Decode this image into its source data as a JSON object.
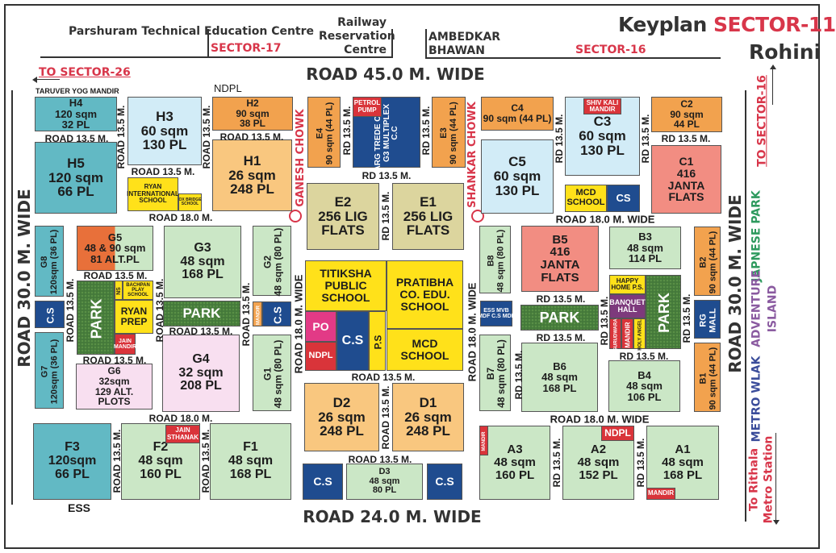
{
  "header": {
    "parshuram": "Parshuram Technical Education Centre",
    "sector17": "SECTOR-17",
    "railway": "Railway Reservation Centre",
    "ambedkar": "AMBEDKAR BHAWAN",
    "sector16": "SECTOR-16",
    "keyplan": "Keyplan",
    "sector11": "SECTOR-11",
    "rohini": "Rohini"
  },
  "directions": {
    "to_sector_26": "TO SECTOR-26",
    "to_sector_16": "TO SECTOR-16",
    "to_rithala_1": "To Rithala",
    "to_rithala_2": "Metro Station"
  },
  "major_roads": {
    "top": "ROAD 45.0 M. WIDE",
    "bottom": "ROAD 24.0 M. WIDE",
    "left": "ROAD 30.0 M. WIDE",
    "right": "ROAD 30.0 M. WIDE"
  },
  "chowks": {
    "ganesh": "GANESH CHOWK",
    "shankar": "SHANKAR CHOWK"
  },
  "landmarks": {
    "taruver": "TARUVER YOG MANDIR",
    "ndpl_top": "NDPL",
    "ess": "ESS",
    "japnese_park": "JAPNESE PARK",
    "adventure_1": "ADVENTURE",
    "adventure_2": "ISLAND",
    "metro_walk": "METRO WLAK"
  },
  "colors": {
    "teal": "#62b9c4",
    "light_blue": "#d2ecf7",
    "orange": "#f2a24e",
    "light_orange": "#f9c77f",
    "khaki": "#dcd59e",
    "dark_blue": "#1f4c8f",
    "light_green": "#cbe7c6",
    "salmon": "#f28d82",
    "yellow": "#ffe11a",
    "pink": "#f8dff0",
    "park_green": "#44793a",
    "red": "#d9343a",
    "magenta": "#e23a86",
    "purple": "#7d3a7c",
    "accent_red": "#d8364a"
  },
  "plots": {
    "H4": {
      "lines": [
        "H4",
        "120 sqm",
        "32 PL"
      ],
      "color": "#62b9c4"
    },
    "H5": {
      "lines": [
        "H5",
        "120 sqm",
        "66 PL"
      ],
      "color": "#62b9c4"
    },
    "H3": {
      "lines": [
        "H3",
        "60 sqm",
        "130 PL"
      ],
      "color": "#d2ecf7"
    },
    "H2": {
      "lines": [
        "H2",
        "90 sqm",
        "38 PL"
      ],
      "color": "#f2a24e"
    },
    "H1": {
      "lines": [
        "H1",
        "26 sqm",
        "248 PL"
      ],
      "color": "#f9c77f"
    },
    "ryan_intl": {
      "lines": [
        "RYAN",
        "INTERNATIONAL",
        "SCHOOL"
      ],
      "color": "#ffe11a"
    },
    "oxbridge": {
      "lines": [
        "OX BRIDGE",
        "SCHOOL"
      ],
      "color": "#ffe11a"
    },
    "E4": {
      "lines": [
        "E4",
        "90 sqm (44 PL)"
      ],
      "color": "#f2a24e"
    },
    "G3_multiplex": {
      "lines": [
        "GARG TREDE CENTRE",
        "G3 MULTIPLEX",
        "C.C"
      ],
      "color": "#1f4c8f"
    },
    "petrol_pump": {
      "lines": [
        "PETROL",
        "PUMP"
      ],
      "color": "#d9343a"
    },
    "E3": {
      "lines": [
        "E3",
        "90 sqm (44 PL)"
      ],
      "color": "#f2a24e"
    },
    "E2": {
      "lines": [
        "E2",
        "256 LIG",
        "FLATS"
      ],
      "color": "#dcd59e"
    },
    "E1": {
      "lines": [
        "E1",
        "256 LIG",
        "FLATS"
      ],
      "color": "#dcd59e"
    },
    "C4": {
      "lines": [
        "C4",
        "90 sqm (44 PL)"
      ],
      "color": "#f2a24e"
    },
    "C3": {
      "lines": [
        "C3",
        "60 sqm",
        "130 PL"
      ],
      "color": "#d2ecf7"
    },
    "shiv_kali": {
      "lines": [
        "SHIV KALI",
        "MANDIR"
      ],
      "color": "#d9343a"
    },
    "C2": {
      "lines": [
        "C2",
        "90 sqm",
        "44 PL"
      ],
      "color": "#f2a24e"
    },
    "C1": {
      "lines": [
        "C1",
        "416",
        "JANTA",
        "FLATS"
      ],
      "color": "#f28d82"
    },
    "C5": {
      "lines": [
        "C5",
        "60 sqm",
        "130 PL"
      ],
      "color": "#d2ecf7"
    },
    "mcd_school_c": {
      "lines": [
        "MCD",
        "SCHOOL"
      ],
      "color": "#ffe11a"
    },
    "cs_c": {
      "lines": [
        "CS"
      ],
      "color": "#1f4c8f"
    },
    "B8": {
      "lines": [
        "B8",
        "48 sqm (80 PL)"
      ],
      "color": "#cbe7c6"
    },
    "B5": {
      "lines": [
        "B5",
        "416",
        "JANTA",
        "FLATS"
      ],
      "color": "#f28d82"
    },
    "B3": {
      "lines": [
        "B3",
        "48 sqm",
        "114 PL"
      ],
      "color": "#cbe7c6"
    },
    "B2": {
      "lines": [
        "B2",
        "90 sqm (44 PL)"
      ],
      "color": "#f2a24e"
    },
    "mvb": {
      "lines": [
        "ESS MVB",
        "MDF C.S MDF"
      ],
      "color": "#1f4c8f"
    },
    "park_b": {
      "lines": [
        "PARK"
      ],
      "color": "#44793a"
    },
    "happy_home": {
      "lines": [
        "HAPPY",
        "HOME P.S."
      ],
      "color": "#ffe11a"
    },
    "banquet": {
      "lines": [
        "BANQUET",
        "HALL"
      ],
      "color": "#7d3a7c"
    },
    "gurudwara": {
      "lines": [
        "GURUDWARA"
      ],
      "color": "#d9343a"
    },
    "mandir_b": {
      "lines": [
        "MANDIR"
      ],
      "color": "#d9343a"
    },
    "holy_angel": {
      "lines": [
        "HOLY ANGEL"
      ],
      "color": "#ffe11a"
    },
    "park_b2": {
      "lines": [
        "PARK"
      ],
      "color": "#44793a"
    },
    "rg_mall": {
      "lines": [
        "RG",
        "MALL"
      ],
      "color": "#1f4c8f"
    },
    "B1": {
      "lines": [
        "B1",
        "90 sqm (44 PL)"
      ],
      "color": "#f2a24e"
    },
    "B7": {
      "lines": [
        "B7",
        "48 sqm (80 PL)"
      ],
      "color": "#cbe7c6"
    },
    "B6": {
      "lines": [
        "B6",
        "48 sqm",
        "168 PL"
      ],
      "color": "#cbe7c6"
    },
    "B4": {
      "lines": [
        "B4",
        "48 sqm",
        "106 PL"
      ],
      "color": "#cbe7c6"
    },
    "A3": {
      "lines": [
        "A3",
        "48 sqm",
        "160 PL"
      ],
      "color": "#cbe7c6"
    },
    "mandir_a3": {
      "lines": [
        "MANDIR"
      ],
      "color": "#d9343a"
    },
    "A2": {
      "lines": [
        "A2",
        "48 sqm",
        "152 PL"
      ],
      "color": "#cbe7c6"
    },
    "ndpl_a2": {
      "lines": [
        "NDPL"
      ],
      "color": "#d9343a"
    },
    "A1": {
      "lines": [
        "A1",
        "48 sqm",
        "168 PL"
      ],
      "color": "#cbe7c6"
    },
    "mandir_a1": {
      "lines": [
        "MANDIR"
      ],
      "color": "#d9343a"
    },
    "cs_d": {
      "lines": [
        "C.S"
      ],
      "color": "#1f4c8f"
    },
    "D3": {
      "lines": [
        "D3",
        "48 sqm",
        "80 PL"
      ],
      "color": "#cbe7c6"
    },
    "cs_d3": {
      "lines": [
        "C.S"
      ],
      "color": "#1f4c8f"
    },
    "D2": {
      "lines": [
        "D2",
        "26 sqm",
        "248 PL"
      ],
      "color": "#f9c77f"
    },
    "D1": {
      "lines": [
        "D1",
        "26 sqm",
        "248 PL"
      ],
      "color": "#f9c77f"
    },
    "titiksha": {
      "lines": [
        "TITIKSHA",
        "PUBLIC",
        "SCHOOL"
      ],
      "color": "#ffe11a"
    },
    "po": {
      "lines": [
        "PO"
      ],
      "color": "#e23a86"
    },
    "ndpl_center": {
      "lines": [
        "NDPL"
      ],
      "color": "#d9343a"
    },
    "cs_center": {
      "lines": [
        "C.S"
      ],
      "color": "#1f4c8f"
    },
    "ps_center": {
      "lines": [
        "P.S"
      ],
      "color": "#ffe11a"
    },
    "pratibha": {
      "lines": [
        "PRATIBHA",
        "CO. EDU.",
        "SCHOOL"
      ],
      "color": "#ffe11a"
    },
    "mcd_school_center": {
      "lines": [
        "MCD",
        "SCHOOL"
      ],
      "color": "#ffe11a"
    },
    "G2": {
      "lines": [
        "G2",
        "48 sqm (80 PL)"
      ],
      "color": "#cbe7c6"
    },
    "mandir_g": {
      "lines": [
        "MANDIR"
      ],
      "color": "#f2a24e"
    },
    "cs_g": {
      "lines": [
        "C.S"
      ],
      "color": "#1f4c8f"
    },
    "G1": {
      "lines": [
        "G1",
        "48 sqm (80 PL)"
      ],
      "color": "#cbe7c6"
    },
    "G3": {
      "lines": [
        "G3",
        "48 sqm",
        "168 PL"
      ],
      "color": "#cbe7c6"
    },
    "park_g": {
      "lines": [
        "PARK"
      ],
      "color": "#44793a"
    },
    "G4": {
      "lines": [
        "G4",
        "32 sqm",
        "208 PL"
      ],
      "color": "#f8dff0"
    },
    "G5": {
      "lines": [
        "G5",
        "48 & 90 sqm",
        "81 ALT.PL"
      ],
      "color": "#cbe7c6"
    },
    "park_g5": {
      "lines": [
        "PARK"
      ],
      "color": "#44793a"
    },
    "ns": {
      "lines": [
        "NS"
      ],
      "color": "#ffe11a"
    },
    "bachpan": {
      "lines": [
        "BACHPAN",
        "PLAY",
        "SCHOOL"
      ],
      "color": "#ffe11a"
    },
    "ryan_prep": {
      "lines": [
        "RYAN",
        "PREP"
      ],
      "color": "#ffe11a"
    },
    "jain_mandir": {
      "lines": [
        "JAIN",
        "MANDIR"
      ],
      "color": "#d9343a"
    },
    "G6": {
      "lines": [
        "G6",
        "32sqm",
        "129 ALT.",
        "PLOTS"
      ],
      "color": "#f8dff0"
    },
    "G8": {
      "lines": [
        "G8",
        "120sqm (36 PL)"
      ],
      "color": "#62b9c4"
    },
    "cs_left": {
      "lines": [
        "C.S"
      ],
      "color": "#1f4c8f"
    },
    "G7": {
      "lines": [
        "G7",
        "120sqm (36 PL)"
      ],
      "color": "#62b9c4"
    },
    "F3": {
      "lines": [
        "F3",
        "120sqm",
        "66 PL"
      ],
      "color": "#62b9c4"
    },
    "F2": {
      "lines": [
        "F2",
        "48 sqm",
        "160 PL"
      ],
      "color": "#cbe7c6"
    },
    "jain_sthanak": {
      "lines": [
        "JAIN",
        "STHANAK"
      ],
      "color": "#d9343a"
    },
    "F1": {
      "lines": [
        "F1",
        "48 sqm",
        "168 PL"
      ],
      "color": "#cbe7c6"
    }
  },
  "roads": [
    "ROAD 13.5 M.",
    "ROAD 13.5 M.",
    "ROAD 13.5 M.",
    "ROAD 13.5 M.",
    "ROAD 13.5 M.",
    "ROAD 18.0 M.",
    "RD 13.5 M.",
    "RD 13.5 M.",
    "RD 13.5 M.",
    "RD 13.5 M.",
    "RD 13.5 M.",
    "RD 13.5 M.",
    "RD 13.5 M.",
    "ROAD 18.0 M. WIDE",
    "RD 13.5 M.",
    "RD 13.5 M.",
    "RD 13.5 M.",
    "RD 13.5 M.",
    "RD 13.5 M.",
    "RD 13.5 M.",
    "ROAD 18.0 M. WIDE",
    "RD 13.5 M.",
    "RD 13.5 M.",
    "ROAD 13.5 M.",
    "ROAD 13.5 M.",
    "ROAD 13.5 M.",
    "ROAD 18.0 M. WIDE",
    "ROAD 18.0 M. WIDE",
    "ROAD 13.5 M.",
    "ROAD 13.5 M.",
    "ROAD 13.5 M.",
    "ROAD 13.5 M.",
    "ROAD 13.5 M.",
    "ROAD 13.5 M.",
    "ROAD 18.0 M.",
    "ROAD 13.5 M.",
    "ROAD 13.5 M."
  ]
}
